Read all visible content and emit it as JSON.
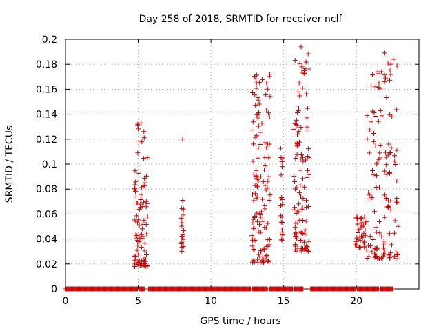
{
  "chart_data": {
    "type": "scatter",
    "title": "Day 258 of 2018, SRMTID for receiver nclf",
    "xlabel": "GPS time / hours",
    "ylabel": "SRMTID / TECUs",
    "xlim": [
      0,
      24.3
    ],
    "ylim": [
      0,
      0.2
    ],
    "xticks": [
      0,
      5,
      10,
      15,
      20
    ],
    "xtick_labels": [
      "0",
      "5",
      "10",
      "15",
      "20"
    ],
    "yticks": [
      0,
      0.02,
      0.04,
      0.06,
      0.08,
      0.1,
      0.12,
      0.14,
      0.16,
      0.18,
      0.2
    ],
    "ytick_labels": [
      "0",
      "0.02",
      "0.04",
      "0.06",
      "0.08",
      "0.1",
      "0.12",
      "0.14",
      "0.16",
      "0.18",
      "0.2"
    ],
    "grid": true,
    "marker": "+",
    "series_color": "#cc0000",
    "series": [
      {
        "name": "SRMTID",
        "clusters": [
          {
            "x_range": [
              4.7,
              5.65
            ],
            "y_range": [
              0.018,
              0.133
            ],
            "count": 95,
            "seed": 11
          },
          {
            "x_range": [
              7.95,
              8.15
            ],
            "y_range": [
              0.03,
              0.071
            ],
            "count": 16,
            "seed": 23
          },
          {
            "x_range": [
              12.8,
              14.1
            ],
            "y_range": [
              0.021,
              0.172
            ],
            "count": 130,
            "seed": 37
          },
          {
            "x_range": [
              14.75,
              14.95
            ],
            "y_range": [
              0.039,
              0.113
            ],
            "count": 22,
            "seed": 41
          },
          {
            "x_range": [
              15.7,
              16.75
            ],
            "y_range": [
              0.03,
              0.194
            ],
            "count": 115,
            "seed": 53
          },
          {
            "x_range": [
              19.9,
              20.6
            ],
            "y_range": [
              0.033,
              0.06
            ],
            "count": 35,
            "seed": 61
          },
          {
            "x_range": [
              20.6,
              22.9
            ],
            "y_range": [
              0.024,
              0.189
            ],
            "count": 140,
            "seed": 71
          }
        ],
        "named_points": [
          {
            "x": 8.05,
            "y": 0.12
          },
          {
            "x": 8.05,
            "y": 0.071
          },
          {
            "x": 5.2,
            "y": 0.133
          },
          {
            "x": 14.05,
            "y": 0.172
          },
          {
            "x": 16.2,
            "y": 0.194
          },
          {
            "x": 16.25,
            "y": 0.178
          },
          {
            "x": 21.95,
            "y": 0.189
          },
          {
            "x": 22.0,
            "y": 0.169
          },
          {
            "x": 21.55,
            "y": 0.165
          },
          {
            "x": 13.95,
            "y": 0.141
          },
          {
            "x": 22.3,
            "y": 0.024
          },
          {
            "x": 13.4,
            "y": 0.021
          },
          {
            "x": 5.5,
            "y": 0.018
          }
        ],
        "zero_band_segments": [
          [
            0.0,
            4.95
          ],
          [
            5.1,
            5.45
          ],
          [
            5.7,
            12.75
          ],
          [
            12.85,
            13.9
          ],
          [
            14.05,
            15.65
          ],
          [
            15.75,
            16.35
          ],
          [
            16.85,
            19.95
          ],
          [
            20.05,
            21.55
          ],
          [
            21.65,
            22.55
          ]
        ]
      }
    ]
  }
}
